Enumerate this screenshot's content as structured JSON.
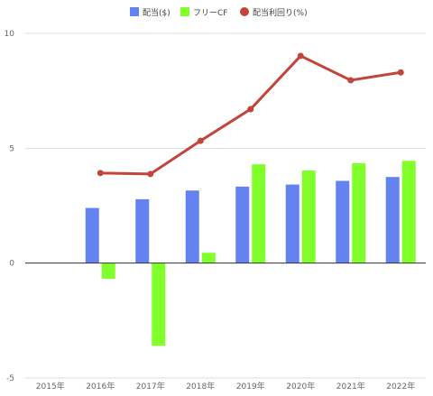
{
  "chart_data": {
    "type": "bar",
    "title": "",
    "xlabel": "",
    "ylabel": "",
    "categories": [
      "2015年",
      "2016年",
      "2017年",
      "2018年",
      "2019年",
      "2020年",
      "2021年",
      "2022年"
    ],
    "ylim": [
      -5,
      10
    ],
    "yticks": [
      -5,
      0,
      5,
      10
    ],
    "grid": true,
    "legend_position": "top-center",
    "series": [
      {
        "name": "配当($)",
        "type": "bar",
        "color": "#6583f0",
        "values": [
          null,
          2.4,
          2.78,
          3.16,
          3.33,
          3.42,
          3.58,
          3.75
        ]
      },
      {
        "name": "フリーCF",
        "type": "bar",
        "color": "#80ff2a",
        "values": [
          null,
          -0.68,
          -3.6,
          0.45,
          4.3,
          4.03,
          4.35,
          4.45
        ]
      },
      {
        "name": "配当利回り(%)",
        "type": "line",
        "color": "#c0453a",
        "values": [
          null,
          3.92,
          3.88,
          5.32,
          6.7,
          9.02,
          7.96,
          8.3
        ]
      }
    ]
  }
}
